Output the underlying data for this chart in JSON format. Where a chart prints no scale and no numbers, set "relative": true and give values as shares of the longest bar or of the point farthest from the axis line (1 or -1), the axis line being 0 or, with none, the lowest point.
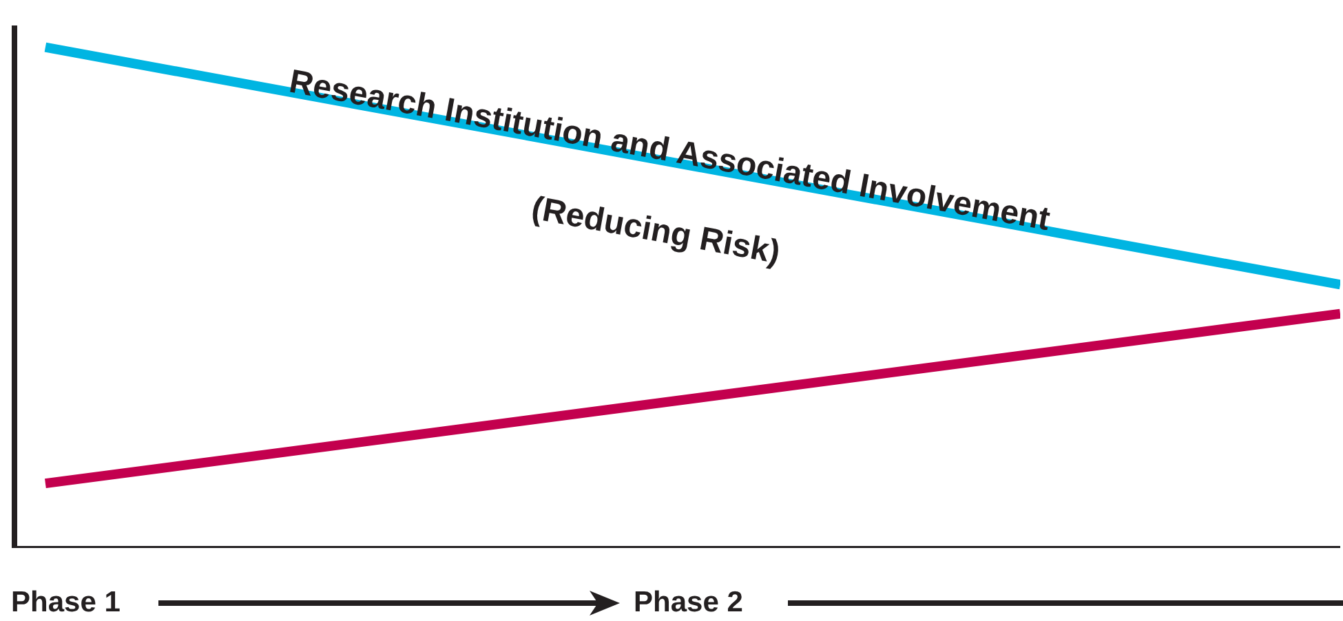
{
  "chart_data": {
    "type": "line",
    "relative": true,
    "categories": [
      null,
      null
    ],
    "series": [
      {
        "name": "Research Institution and Associated Involvement",
        "color": "#00b5e2",
        "values": [
          1,
          0.526
        ]
      },
      {
        "color": "#c3004e",
        "values": [
          0.129,
          0.468
        ]
      }
    ],
    "annotations": [
      "(Reducing Risk)",
      "Phase 1",
      "Phase 2"
    ],
    "marker": "none",
    "line_style": "solid"
  }
}
